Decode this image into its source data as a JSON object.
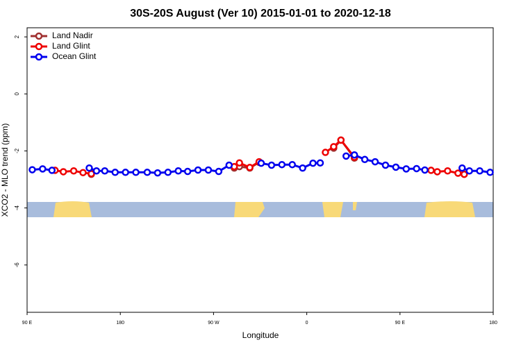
{
  "chart_data": {
    "type": "line",
    "title": "30S-20S August (Ver 10)   2015-01-01 to 2020-12-18",
    "xlabel": "Longitude",
    "ylabel": "XCO2 - MLO trend (ppm)",
    "xlim": [
      90,
      540
    ],
    "ylim": [
      -7.66,
      2.32
    ],
    "xticks": [
      {
        "value": 90,
        "label": "90 E"
      },
      180,
      {
        "value": 270,
        "label": "90 W"
      },
      0,
      {
        "value": 450,
        "label": "90 E"
      },
      {
        "value": 540,
        "label": "180"
      }
    ],
    "yticks": [
      2,
      0,
      -2,
      -4,
      -6
    ],
    "legend": "top-left",
    "series": [
      {
        "name": "Land Nadir",
        "color": "#a03030",
        "x": [
          152,
          220,
          290,
          295,
          305,
          314,
          350,
          386,
          393,
          406,
          450,
          512
        ],
        "values": [
          -2.82,
          null,
          -2.6,
          -2.55,
          -2.6,
          -2.4,
          null,
          -1.9,
          -1.62,
          -2.25,
          null,
          -2.82
        ]
      },
      {
        "name": "Land Glint",
        "color": "#ee0000",
        "x": [
          117,
          125,
          135,
          144,
          152,
          220,
          290,
          295,
          305,
          314,
          350,
          378,
          386,
          393,
          406,
          450,
          480,
          486,
          496,
          506,
          512
        ],
        "values": [
          -2.68,
          -2.73,
          -2.7,
          -2.76,
          -2.8,
          null,
          -2.55,
          -2.42,
          -2.58,
          -2.38,
          null,
          -2.05,
          -1.85,
          -1.62,
          -2.22,
          null,
          -2.68,
          -2.73,
          -2.7,
          -2.78,
          -2.82
        ]
      },
      {
        "name": "Ocean Glint",
        "color": "#0000ee",
        "x": [
          95,
          105,
          114,
          130,
          150,
          157,
          165,
          175,
          185,
          195,
          206,
          216,
          226,
          236,
          245,
          255,
          265,
          275,
          285,
          300,
          316,
          326,
          336,
          346,
          356,
          366,
          373,
          385,
          398,
          406,
          416,
          426,
          436,
          446,
          456,
          466,
          474,
          490,
          510,
          517,
          527,
          537
        ],
        "values": [
          -2.66,
          -2.63,
          -2.68,
          null,
          -2.6,
          -2.7,
          -2.7,
          -2.75,
          -2.75,
          -2.75,
          -2.75,
          -2.77,
          -2.75,
          -2.7,
          -2.72,
          -2.67,
          -2.67,
          -2.72,
          -2.5,
          null,
          -2.43,
          -2.5,
          -2.48,
          -2.48,
          -2.6,
          -2.43,
          -2.42,
          null,
          -2.18,
          -2.14,
          -2.3,
          -2.38,
          -2.5,
          -2.57,
          -2.63,
          -2.62,
          -2.67,
          null,
          -2.6,
          -2.7,
          -2.7,
          -2.75
        ]
      }
    ]
  }
}
